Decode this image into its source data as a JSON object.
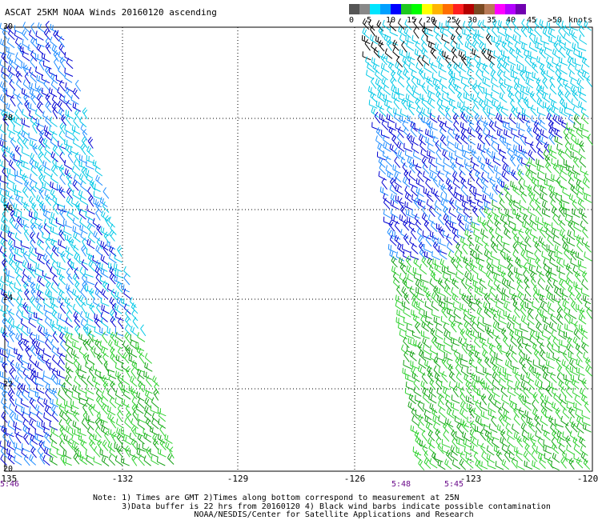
{
  "title": "ASCAT 25KM NOAA Winds 20160120 ascending",
  "legend": {
    "tick_labels": [
      "0",
      "5",
      "10",
      "15",
      "20",
      "25",
      "30",
      "35",
      "40",
      "45",
      ">50"
    ],
    "units": "knots",
    "colors": [
      "#555555",
      "#888888",
      "#00e5ff",
      "#00a0ff",
      "#0000ff",
      "#1ec81e",
      "#00ff00",
      "#ffff00",
      "#ffb400",
      "#ff6e00",
      "#ff2020",
      "#b40000",
      "#7a4a22",
      "#b97a57",
      "#ff00ff",
      "#b400ff",
      "#7000b0"
    ]
  },
  "axes": {
    "x_labels": [
      "-135",
      "-132",
      "-129",
      "-126",
      "-123",
      "-120"
    ],
    "y_labels": [
      "30",
      "28",
      "26",
      "24",
      "22",
      "20"
    ]
  },
  "time_labels": [
    "5:46",
    "5:48",
    "5:45"
  ],
  "notes": [
    "Note: 1) Times are GMT 2)Times along bottom correspond to measurement at 25N",
    "      3)Data buffer is 22 hrs from 20160120 4) Black wind barbs indicate possible contamination",
    "                     NOAA/NESDIS/Center for Satellite Applications and Research"
  ],
  "barb_colors": {
    "cyan": "#00c8e6",
    "light_blue": "#1e8cff",
    "blue": "#0000d2",
    "green": "#2fd12f",
    "dark_green": "#14a014",
    "black": "#000000",
    "contamination": "#000000"
  }
}
